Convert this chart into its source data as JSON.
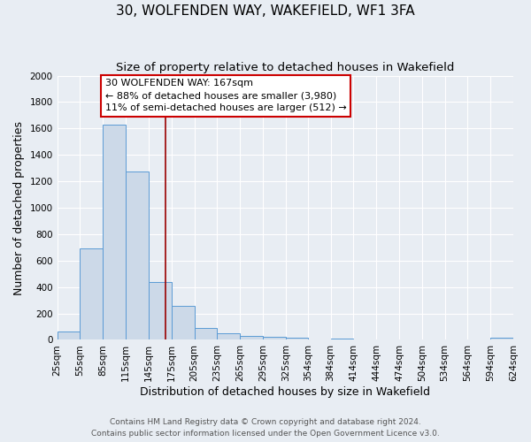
{
  "title": "30, WOLFENDEN WAY, WAKEFIELD, WF1 3FA",
  "subtitle": "Size of property relative to detached houses in Wakefield",
  "xlabel": "Distribution of detached houses by size in Wakefield",
  "ylabel": "Number of detached properties",
  "bar_edges": [
    25,
    55,
    85,
    115,
    145,
    175,
    205,
    235,
    265,
    295,
    325,
    354,
    384,
    414,
    444,
    474,
    504,
    534,
    564,
    594,
    624
  ],
  "bar_heights": [
    65,
    695,
    1630,
    1275,
    435,
    255,
    90,
    52,
    30,
    20,
    15,
    0,
    12,
    0,
    0,
    0,
    0,
    0,
    0,
    15
  ],
  "bar_color": "#ccd9e8",
  "bar_edge_color": "#5b9bd5",
  "vline_x": 167,
  "vline_color": "#990000",
  "annotation_line1": "30 WOLFENDEN WAY: 167sqm",
  "annotation_line2": "← 88% of detached houses are smaller (3,980)",
  "annotation_line3": "11% of semi-detached houses are larger (512) →",
  "annotation_box_color": "#ffffff",
  "annotation_box_edge_color": "#cc0000",
  "ylim": [
    0,
    2000
  ],
  "yticks": [
    0,
    200,
    400,
    600,
    800,
    1000,
    1200,
    1400,
    1600,
    1800,
    2000
  ],
  "xtick_labels": [
    "25sqm",
    "55sqm",
    "85sqm",
    "115sqm",
    "145sqm",
    "175sqm",
    "205sqm",
    "235sqm",
    "265sqm",
    "295sqm",
    "325sqm",
    "354sqm",
    "384sqm",
    "414sqm",
    "444sqm",
    "474sqm",
    "504sqm",
    "534sqm",
    "564sqm",
    "594sqm",
    "624sqm"
  ],
  "footer_line1": "Contains HM Land Registry data © Crown copyright and database right 2024.",
  "footer_line2": "Contains public sector information licensed under the Open Government Licence v3.0.",
  "background_color": "#e8edf3",
  "grid_color": "#ffffff",
  "title_fontsize": 11,
  "subtitle_fontsize": 9.5,
  "axis_label_fontsize": 9,
  "tick_fontsize": 7.5,
  "footer_fontsize": 6.5,
  "annotation_fontsize": 8
}
